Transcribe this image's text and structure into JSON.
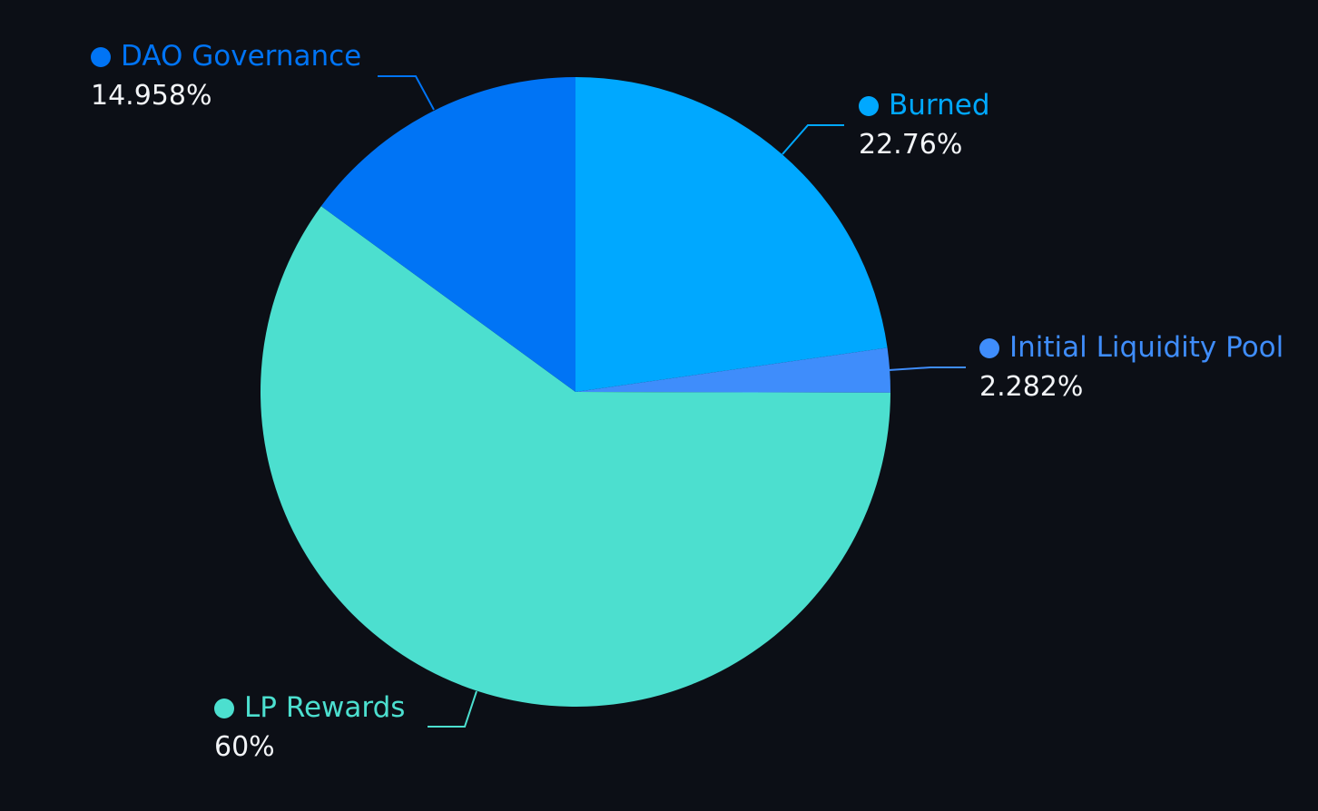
{
  "chart_data": {
    "type": "pie",
    "slices": [
      {
        "label": "Burned",
        "percent_label": "22.76%",
        "value": 22.76,
        "color": "#00a8ff"
      },
      {
        "label": "Initial Liquidity Pool",
        "percent_label": "2.282%",
        "value": 2.282,
        "color": "#3f8dfb"
      },
      {
        "label": "LP Rewards",
        "percent_label": "60%",
        "value": 60,
        "color": "#4cdfcf"
      },
      {
        "label": "DAO Governance",
        "percent_label": "14.958%",
        "value": 14.958,
        "color": "#0074f5"
      }
    ],
    "start_angle": "12 o'clock",
    "direction": "clockwise",
    "legend": "none",
    "background": "#0c0f16"
  }
}
